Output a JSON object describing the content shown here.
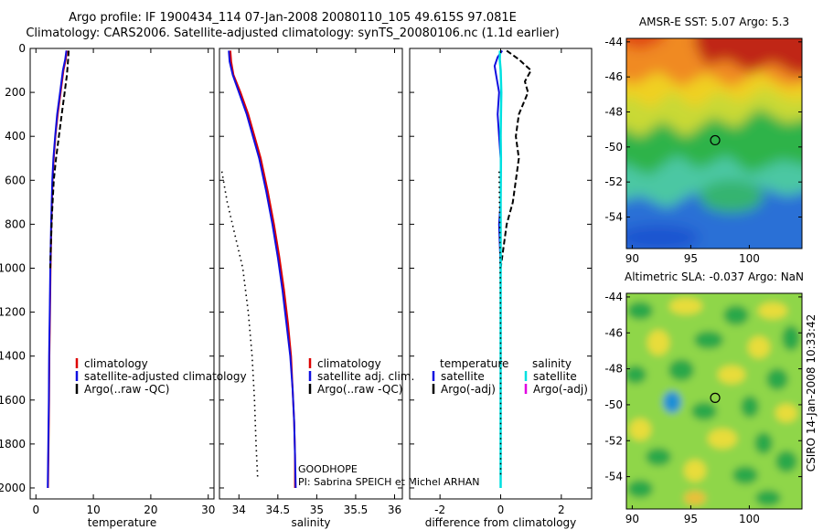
{
  "header": {
    "line1": "Argo profile: IF 1900434_114 07-Jan-2008 20080110_105 49.615S 97.081E",
    "line2": "Climatology: CARS2006. Satellite-adjusted climatology: synTS_20080106.nc (1.1d earlier)"
  },
  "footer_credit": "CSIRO 14-Jan-2008 10:33:42",
  "colors": {
    "climatology": "#dd0000",
    "satellite": "#1010e0",
    "argo": "#000000",
    "salinity_satellite": "#00e0e0",
    "salinity_argo": "#e000e0"
  },
  "chart_data": [
    {
      "type": "line",
      "id": "temperature",
      "xlabel": "temperature",
      "xlim": [
        -1,
        31
      ],
      "ylim": [
        0,
        2050
      ],
      "y_reversed": true,
      "xticks": [
        "0",
        "10",
        "20",
        "30"
      ],
      "yticks": [
        "0",
        "200",
        "400",
        "600",
        "800",
        "1000",
        "1200",
        "1400",
        "1600",
        "1800",
        "2000"
      ],
      "series": [
        {
          "name": "climatology",
          "style": "red",
          "points": [
            [
              5.4,
              10
            ],
            [
              5.2,
              50
            ],
            [
              4.8,
              100
            ],
            [
              4.3,
              200
            ],
            [
              3.8,
              300
            ],
            [
              3.4,
              400
            ],
            [
              3.1,
              500
            ],
            [
              2.9,
              600
            ],
            [
              2.7,
              800
            ],
            [
              2.55,
              1000
            ],
            [
              2.45,
              1200
            ],
            [
              2.35,
              1400
            ],
            [
              2.3,
              1600
            ],
            [
              2.2,
              1800
            ],
            [
              2.1,
              2000
            ]
          ]
        },
        {
          "name": "satellite-adjusted climatology",
          "style": "blue",
          "points": [
            [
              5.3,
              10
            ],
            [
              5.1,
              50
            ],
            [
              4.7,
              100
            ],
            [
              4.2,
              200
            ],
            [
              3.7,
              300
            ],
            [
              3.35,
              400
            ],
            [
              3.05,
              500
            ],
            [
              2.85,
              600
            ],
            [
              2.65,
              800
            ],
            [
              2.5,
              1000
            ],
            [
              2.4,
              1200
            ],
            [
              2.3,
              1400
            ],
            [
              2.25,
              1600
            ],
            [
              2.15,
              1800
            ],
            [
              2.05,
              2000
            ]
          ]
        },
        {
          "name": "Argo(..raw -QC)",
          "style": "black-dash",
          "points": [
            [
              5.7,
              10
            ],
            [
              5.6,
              50
            ],
            [
              5.4,
              120
            ],
            [
              5.0,
              200
            ],
            [
              4.5,
              300
            ],
            [
              4.0,
              400
            ],
            [
              3.5,
              500
            ],
            [
              3.1,
              600
            ],
            [
              2.8,
              750
            ],
            [
              2.6,
              900
            ],
            [
              2.5,
              1000
            ]
          ]
        }
      ],
      "legend": [
        "climatology",
        "satellite-adjusted climatology",
        "Argo(..raw -QC)"
      ]
    },
    {
      "type": "line",
      "id": "salinity",
      "xlabel": "salinity",
      "xlim": [
        33.75,
        36.1
      ],
      "ylim": [
        0,
        2050
      ],
      "y_reversed": true,
      "xticks": [
        "34",
        "34.5",
        "35",
        "35.5",
        "36"
      ],
      "series": [
        {
          "name": "climatology",
          "style": "red",
          "points": [
            [
              33.89,
              10
            ],
            [
              33.9,
              60
            ],
            [
              33.93,
              120
            ],
            [
              34.02,
              200
            ],
            [
              34.12,
              300
            ],
            [
              34.2,
              400
            ],
            [
              34.28,
              500
            ],
            [
              34.37,
              650
            ],
            [
              34.45,
              800
            ],
            [
              34.52,
              950
            ],
            [
              34.58,
              1100
            ],
            [
              34.63,
              1250
            ],
            [
              34.67,
              1400
            ],
            [
              34.69,
              1550
            ],
            [
              34.71,
              1700
            ],
            [
              34.72,
              1850
            ],
            [
              34.72,
              2000
            ]
          ]
        },
        {
          "name": "satellite adj. clim.",
          "style": "blue",
          "points": [
            [
              33.87,
              10
            ],
            [
              33.88,
              60
            ],
            [
              33.92,
              120
            ],
            [
              34.0,
              200
            ],
            [
              34.1,
              300
            ],
            [
              34.18,
              400
            ],
            [
              34.26,
              500
            ],
            [
              34.35,
              650
            ],
            [
              34.43,
              800
            ],
            [
              34.5,
              950
            ],
            [
              34.56,
              1100
            ],
            [
              34.61,
              1250
            ],
            [
              34.66,
              1400
            ],
            [
              34.69,
              1550
            ],
            [
              34.71,
              1700
            ],
            [
              34.72,
              1850
            ],
            [
              34.73,
              2000
            ]
          ]
        },
        {
          "name": "Argo(..raw -QC)",
          "style": "black-dot",
          "points": [
            [
              33.78,
              560
            ],
            [
              33.85,
              700
            ],
            [
              33.95,
              850
            ],
            [
              34.05,
              1000
            ],
            [
              34.12,
              1200
            ],
            [
              34.17,
              1400
            ],
            [
              34.2,
              1600
            ],
            [
              34.22,
              1800
            ],
            [
              34.24,
              1950
            ]
          ]
        }
      ],
      "legend": [
        "climatology",
        "satellite adj. clim.",
        "Argo(..raw -QC)"
      ],
      "annotations": [
        "GOODHOPE",
        "PI: Sabrina SPEICH et Michel ARHAN"
      ]
    },
    {
      "type": "line",
      "id": "difference",
      "xlabel": "difference from climatology",
      "xlim": [
        -3,
        3
      ],
      "ylim": [
        0,
        2050
      ],
      "y_reversed": true,
      "xticks": [
        "-2",
        "0",
        "2"
      ],
      "series": [
        {
          "name": "temperature satellite",
          "style": "blue",
          "points": [
            [
              0.05,
              10
            ],
            [
              -0.1,
              40
            ],
            [
              -0.2,
              80
            ],
            [
              -0.15,
              120
            ],
            [
              -0.05,
              200
            ],
            [
              -0.1,
              300
            ],
            [
              -0.05,
              400
            ],
            [
              0.0,
              500
            ],
            [
              0.0,
              700
            ],
            [
              -0.05,
              800
            ],
            [
              0.0,
              1000
            ],
            [
              0.0,
              1200
            ],
            [
              0.0,
              1400
            ],
            [
              0.0,
              1600
            ],
            [
              0.0,
              1800
            ],
            [
              0.0,
              2000
            ]
          ]
        },
        {
          "name": "temperature Argo(-adj)",
          "style": "black-dash",
          "points": [
            [
              0.2,
              10
            ],
            [
              0.6,
              50
            ],
            [
              1.0,
              100
            ],
            [
              0.8,
              150
            ],
            [
              0.9,
              200
            ],
            [
              0.6,
              300
            ],
            [
              0.5,
              400
            ],
            [
              0.6,
              500
            ],
            [
              0.5,
              600
            ],
            [
              0.4,
              700
            ],
            [
              0.2,
              800
            ],
            [
              0.1,
              900
            ],
            [
              0.0,
              1000
            ]
          ]
        },
        {
          "name": "salinity satellite",
          "style": "cyan",
          "points": [
            [
              -0.02,
              10
            ],
            [
              -0.03,
              50
            ],
            [
              0.0,
              100
            ],
            [
              0.02,
              200
            ],
            [
              0.01,
              300
            ],
            [
              0.0,
              400
            ],
            [
              0.01,
              500
            ],
            [
              0.0,
              700
            ],
            [
              0.0,
              900
            ],
            [
              0.0,
              1100
            ],
            [
              0.0,
              1300
            ],
            [
              0.0,
              1500
            ],
            [
              0.0,
              1700
            ],
            [
              0.0,
              1900
            ],
            [
              0.0,
              2000
            ]
          ]
        },
        {
          "name": "salinity Argo(-adj)",
          "style": "black-dot",
          "points": [
            [
              -0.05,
              560
            ],
            [
              -0.03,
              800
            ],
            [
              -0.01,
              1100
            ],
            [
              0.0,
              1400
            ],
            [
              0.0,
              1700
            ],
            [
              0.0,
              1950
            ]
          ]
        }
      ],
      "legend_groups": [
        {
          "title": "temperature",
          "items": [
            "satellite",
            "Argo(-adj)"
          ]
        },
        {
          "title": "salinity",
          "items": [
            "satellite",
            "Argo(-adj)"
          ]
        }
      ]
    },
    {
      "type": "heatmap",
      "id": "sst-map",
      "title": "AMSR-E SST: 5.07 Argo: 5.3",
      "xlim": [
        89.5,
        104.5
      ],
      "ylim": [
        -55.8,
        -43.8
      ],
      "xticks": [
        "90",
        "95",
        "100"
      ],
      "yticks": [
        "-44",
        "-46",
        "-48",
        "-50",
        "-52",
        "-54"
      ],
      "marker": {
        "lon": 97.081,
        "lat": -49.615
      }
    },
    {
      "type": "heatmap",
      "id": "sla-map",
      "title": "Altimetric SLA: -0.037 Argo: NaN",
      "xlim": [
        89.5,
        104.5
      ],
      "ylim": [
        -55.8,
        -43.8
      ],
      "xticks": [
        "90",
        "95",
        "100"
      ],
      "yticks": [
        "-44",
        "-46",
        "-48",
        "-50",
        "-52",
        "-54"
      ],
      "marker": {
        "lon": 97.081,
        "lat": -49.615
      }
    }
  ]
}
